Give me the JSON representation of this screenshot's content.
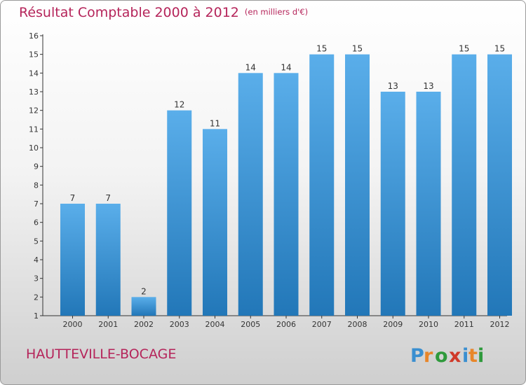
{
  "header": {
    "title": "Résultat Comptable 2000 à 2012",
    "unit": "(en milliers d'€)"
  },
  "footer": {
    "town": "HAUTTEVILLE-BOCAGE",
    "brand": "Proxiti"
  },
  "colors": {
    "title": "#b5245a",
    "bar_top": "#5aaeea",
    "bar_bottom": "#2277b8",
    "axis": "#333333"
  },
  "chart_data": {
    "type": "bar",
    "title": "Résultat Comptable 2000 à 2012",
    "ylabel": "en milliers d'€",
    "xlabel": "",
    "categories": [
      "2000",
      "2001",
      "2002",
      "2003",
      "2004",
      "2005",
      "2006",
      "2007",
      "2008",
      "2009",
      "2010",
      "2011",
      "2012"
    ],
    "values": [
      7,
      7,
      2,
      12,
      11,
      14,
      14,
      15,
      15,
      13,
      13,
      15,
      15
    ],
    "ylim": [
      1,
      16
    ],
    "yticks": [
      1,
      2,
      3,
      4,
      5,
      6,
      7,
      8,
      9,
      10,
      11,
      12,
      13,
      14,
      15,
      16
    ],
    "grid": false,
    "legend": "none"
  }
}
